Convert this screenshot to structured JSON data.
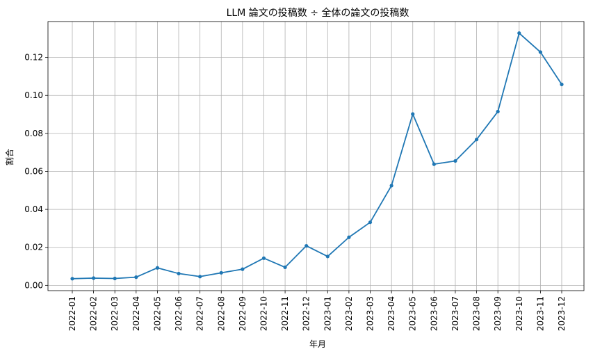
{
  "chart_data": {
    "type": "line",
    "title": "LLM 論文の投稿数 ÷ 全体の論文の投稿数",
    "xlabel": "年月",
    "ylabel": "割合",
    "categories": [
      "2022-01",
      "2022-02",
      "2022-03",
      "2022-04",
      "2022-05",
      "2022-06",
      "2022-07",
      "2022-08",
      "2022-09",
      "2022-10",
      "2022-11",
      "2022-12",
      "2023-01",
      "2023-02",
      "2023-03",
      "2023-04",
      "2023-05",
      "2023-06",
      "2023-07",
      "2023-08",
      "2023-09",
      "2023-10",
      "2023-11",
      "2023-12"
    ],
    "series": [
      {
        "values": [
          0.0035,
          0.0038,
          0.0036,
          0.0043,
          0.0092,
          0.0062,
          0.0046,
          0.0066,
          0.0085,
          0.0143,
          0.0095,
          0.0208,
          0.0152,
          0.0253,
          0.0332,
          0.0525,
          0.0902,
          0.0638,
          0.0655,
          0.0768,
          0.0915,
          0.1328,
          0.1228,
          0.1058
        ]
      }
    ],
    "ylim": [
      -0.0028,
      0.1389
    ],
    "yticks": [
      "0.00",
      "0.02",
      "0.04",
      "0.06",
      "0.08",
      "0.10",
      "0.12"
    ],
    "grid": true,
    "legend": "none",
    "colors": {
      "line": "#1f77b4",
      "grid": "#b0b0b0",
      "axis": "#000000"
    }
  }
}
